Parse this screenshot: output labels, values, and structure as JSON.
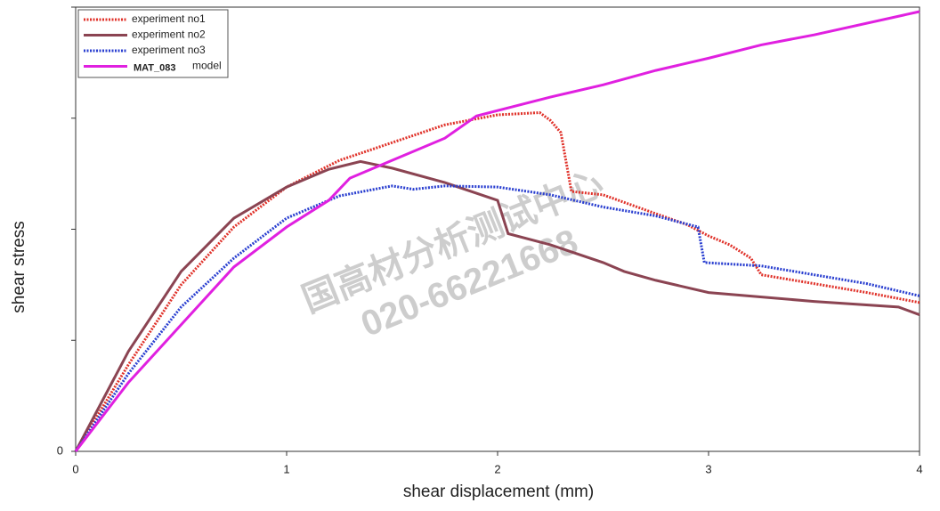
{
  "chart_data": {
    "type": "line",
    "xlabel": "shear displacement (mm)",
    "ylabel": "shear stress",
    "xlim": [
      0,
      4
    ],
    "xticks": [
      0,
      1,
      2,
      3,
      4
    ],
    "ylim": [
      0,
      4
    ],
    "yticks": [
      0,
      {
        "value": 1,
        "label": null
      },
      {
        "value": 2,
        "label": null
      },
      {
        "value": 3,
        "label": null
      },
      {
        "value": 4,
        "label": null
      }
    ],
    "legend": "top-left",
    "legend_annotation": "MAT_083",
    "watermark": [
      "国高材分析测试中心",
      "020-66221668"
    ],
    "series": [
      {
        "name": "experiment no1",
        "color": "#e0322a",
        "dash": "dotted",
        "x": [
          0,
          0.25,
          0.5,
          0.75,
          1.0,
          1.25,
          1.5,
          1.75,
          2.0,
          2.2,
          2.25,
          2.3,
          2.35,
          2.5,
          2.75,
          2.9,
          3.0,
          3.1,
          3.2,
          3.25,
          3.5,
          3.75,
          4
        ],
        "values": [
          0,
          0.78,
          1.5,
          2.02,
          2.38,
          2.62,
          2.78,
          2.94,
          3.03,
          3.05,
          2.98,
          2.87,
          2.34,
          2.31,
          2.14,
          2.04,
          1.94,
          1.86,
          1.74,
          1.59,
          1.51,
          1.43,
          1.34
        ]
      },
      {
        "name": "experiment no2",
        "color": "#8b4452",
        "dash": "solid",
        "x": [
          0,
          0.25,
          0.5,
          0.75,
          1.0,
          1.2,
          1.35,
          1.5,
          1.75,
          2.0,
          2.05,
          2.25,
          2.5,
          2.6,
          2.75,
          3.0,
          3.5,
          3.9,
          4
        ],
        "values": [
          0,
          0.9,
          1.62,
          2.1,
          2.38,
          2.54,
          2.61,
          2.55,
          2.42,
          2.26,
          1.96,
          1.86,
          1.7,
          1.62,
          1.54,
          1.43,
          1.35,
          1.3,
          1.23
        ]
      },
      {
        "name": "experiment no3",
        "color": "#2a3fd0",
        "dash": "dotted",
        "x": [
          0,
          0.25,
          0.5,
          0.75,
          1.0,
          1.25,
          1.5,
          1.6,
          1.75,
          2.0,
          2.25,
          2.5,
          2.75,
          2.95,
          2.98,
          3.25,
          3.5,
          3.75,
          4
        ],
        "values": [
          0,
          0.7,
          1.3,
          1.74,
          2.1,
          2.3,
          2.39,
          2.36,
          2.39,
          2.38,
          2.31,
          2.2,
          2.12,
          2.02,
          1.7,
          1.67,
          1.59,
          1.51,
          1.4
        ]
      },
      {
        "name": "model",
        "color": "#e020e0",
        "dash": "solid",
        "x": [
          0,
          0.25,
          0.5,
          0.75,
          1.0,
          1.2,
          1.3,
          1.5,
          1.75,
          1.9,
          2.25,
          2.5,
          2.75,
          3.0,
          3.25,
          3.5,
          4
        ],
        "values": [
          0,
          0.62,
          1.14,
          1.66,
          2.02,
          2.26,
          2.46,
          2.62,
          2.82,
          3.02,
          3.19,
          3.3,
          3.43,
          3.54,
          3.66,
          3.75,
          3.96
        ]
      }
    ]
  }
}
